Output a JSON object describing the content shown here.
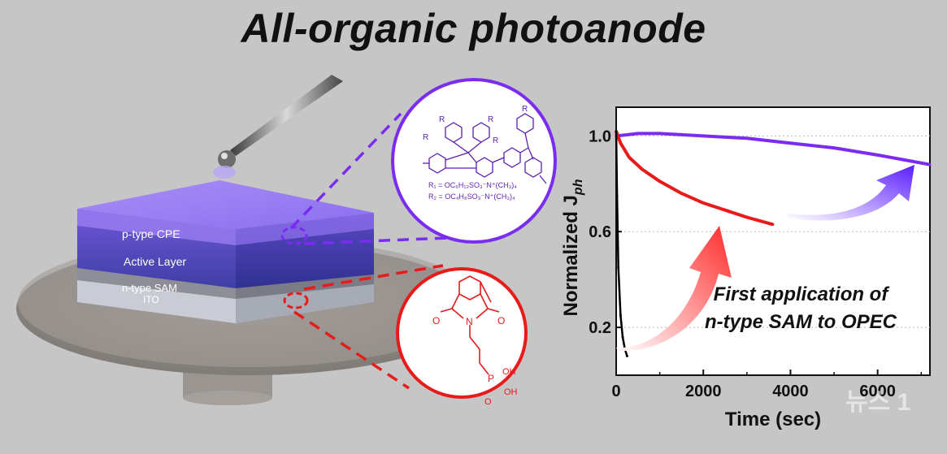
{
  "title": "All-organic photoanode",
  "layers": {
    "top": "p-type CPE",
    "middle": "Active Layer",
    "sam": "n-type SAM",
    "ito": "ITO"
  },
  "purple_structure": {
    "r_label": "R",
    "r1_def": "R₁ = OC₆H₁₂SO₃⁻N⁺(CH₃)₄",
    "r2_def": "R₂ = OC₄H₈SO₃⁻N⁺(CH₃)₄"
  },
  "red_structure": {
    "atom_o1": "O",
    "atom_o2": "O",
    "atom_n": "N",
    "atom_p": "P",
    "atom_oh1": "OH",
    "atom_oh2": "OH",
    "atom_o3": "O"
  },
  "annotation": {
    "line1": "First application of",
    "line2": "n-type SAM to OPEC"
  },
  "watermark": "뉴스 1",
  "colors": {
    "purple": "#7a2cf0",
    "red": "#e81b1b",
    "black_trace": "#000000"
  },
  "chart_data": {
    "type": "line",
    "xlabel": "Time (sec)",
    "ylabel": "Normalized J",
    "ylabel_sub": "ph",
    "x_ticks": [
      0,
      2000,
      4000,
      6000
    ],
    "y_ticks": [
      0.2,
      0.6,
      1.0
    ],
    "x_tick_labels": [
      "0",
      "2000",
      "4000",
      "6000"
    ],
    "y_tick_labels": [
      "0.2",
      "0.6",
      "1.0"
    ],
    "xlim": [
      0,
      7200
    ],
    "ylim": [
      0.0,
      1.12
    ],
    "grid": "dotted horizontal",
    "series": [
      {
        "color": "#7a2cf0",
        "x": [
          0,
          500,
          1000,
          2000,
          3000,
          4000,
          5000,
          6000,
          7200
        ],
        "y": [
          1.0,
          1.01,
          1.01,
          1.0,
          0.99,
          0.97,
          0.95,
          0.92,
          0.88
        ]
      },
      {
        "color": "#e81b1b",
        "x": [
          0,
          100,
          300,
          600,
          1000,
          1500,
          2000,
          2500,
          3000,
          3600
        ],
        "y": [
          1.02,
          0.97,
          0.91,
          0.86,
          0.81,
          0.76,
          0.72,
          0.69,
          0.66,
          0.63
        ]
      },
      {
        "color": "#000000",
        "x": [
          0,
          20,
          50,
          100,
          150,
          200,
          250
        ],
        "y": [
          1.02,
          0.75,
          0.45,
          0.25,
          0.16,
          0.11,
          0.08
        ]
      }
    ]
  }
}
